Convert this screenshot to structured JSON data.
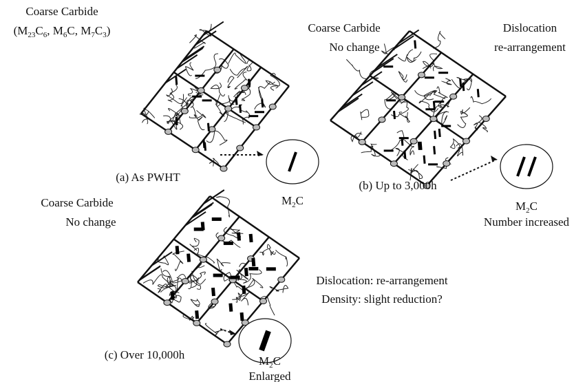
{
  "top_label": {
    "title": "Coarse Carbide",
    "formula": "(M23C6, M6C, M7C3)"
  },
  "panels": [
    {
      "caption": "(a) As PWHT",
      "inset_label": "M2C"
    },
    {
      "caption": "(b) Up to 3,000h",
      "notes": [
        "Coarse Carbide",
        "No change",
        "Dislocation",
        "re-arrangement"
      ],
      "inset_label": "M2C",
      "inset_note": "Number increased"
    },
    {
      "caption": "(c) Over 10,000h",
      "notes": [
        "Coarse Carbide",
        "No change",
        "Dislocation: re-arrangement",
        "Density: slight reduction?"
      ],
      "inset_label": "M2C",
      "inset_note": "Enlarged"
    }
  ]
}
